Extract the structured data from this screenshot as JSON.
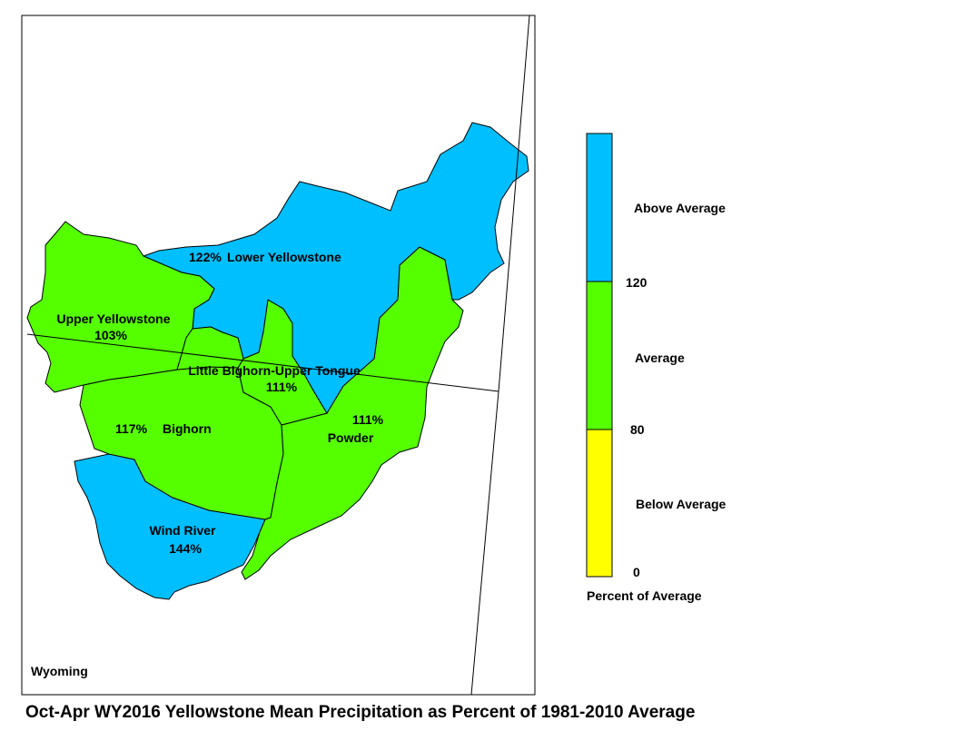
{
  "caption": "Oct-Apr WY2016 Yellowstone Mean Precipitation as Percent of 1981-2010 Average",
  "map": {
    "state_label": "Wyoming",
    "basins": [
      {
        "name": "Lower Yellowstone",
        "percent": "122%",
        "category": "Above Average"
      },
      {
        "name": "Upper Yellowstone",
        "percent": "103%",
        "category": "Average"
      },
      {
        "name": "Little Bighorn-Upper Tongue",
        "percent": "111%",
        "category": "Average"
      },
      {
        "name": "Bighorn",
        "percent": "117%",
        "category": "Average"
      },
      {
        "name": "Powder",
        "percent": "111%",
        "category": "Average"
      },
      {
        "name": "Wind River",
        "percent": "144%",
        "category": "Above Average"
      }
    ]
  },
  "legend": {
    "title": "Percent of Average",
    "categories": [
      {
        "label": "Above Average",
        "color": "#00bfff"
      },
      {
        "label": "Average",
        "color": "#55ff00"
      },
      {
        "label": "Below Average",
        "color": "#ffff00"
      }
    ],
    "breaks": [
      "120",
      "80",
      "0"
    ]
  }
}
